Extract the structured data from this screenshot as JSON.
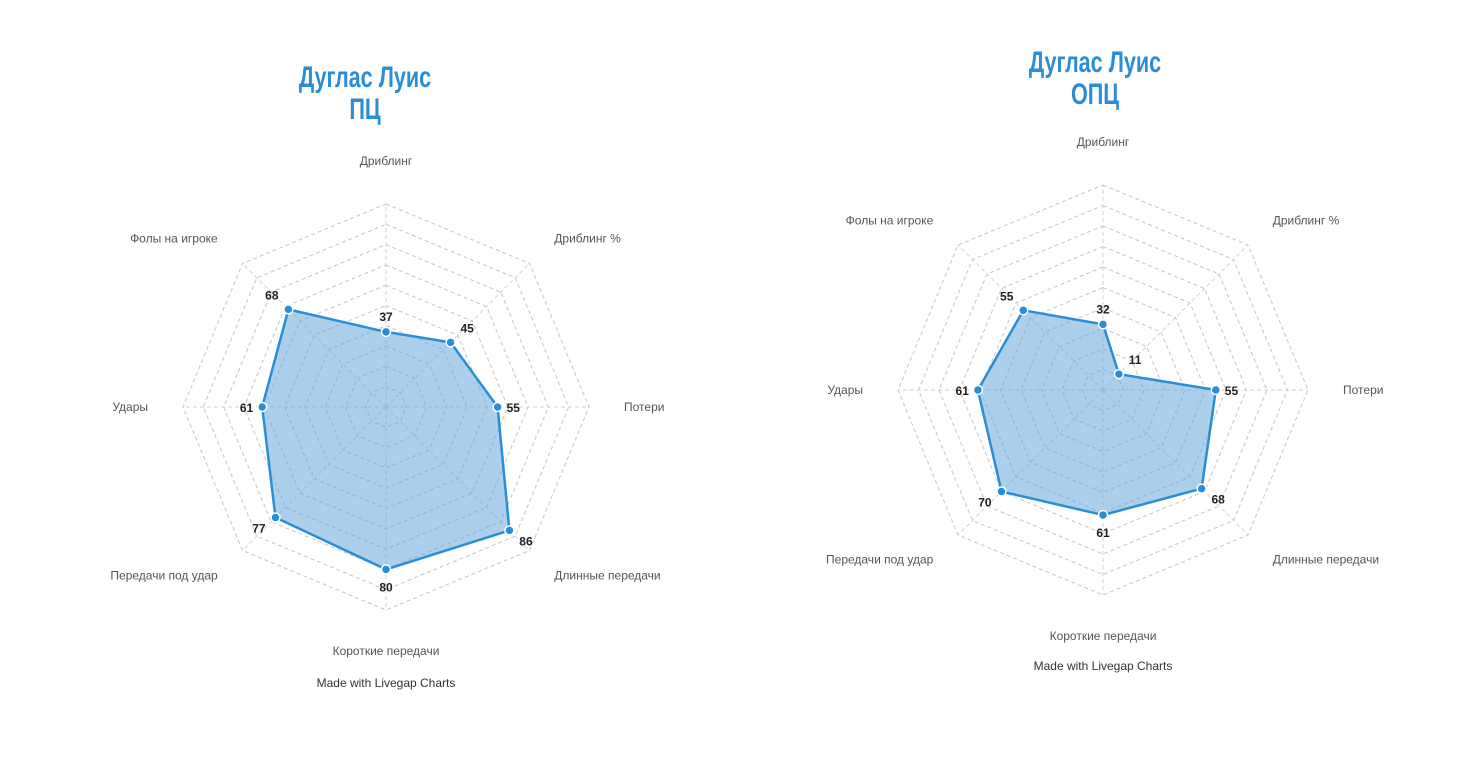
{
  "chart_data": [
    {
      "type": "radar",
      "title_lines": [
        "Дуглас Луис",
        "ПЦ"
      ],
      "categories": [
        "Дриблинг",
        "Дриблинг %",
        "Потери",
        "Длинные передачи",
        "Короткие передачи",
        "Передачи под удар",
        "Удары",
        "Фолы на игроке"
      ],
      "values": [
        37,
        45,
        55,
        86,
        80,
        77,
        61,
        68
      ],
      "rmax": 100,
      "grid_levels": 10,
      "credit": "Made with Livegap Charts",
      "colors": {
        "line": "#2a8ed6",
        "fill": "#68aadc",
        "title": "#2a8ed6"
      }
    },
    {
      "type": "radar",
      "title_lines": [
        "Дуглас Луис",
        "ОПЦ"
      ],
      "categories": [
        "Дриблинг",
        "Дриблинг %",
        "Потери",
        "Длинные передачи",
        "Короткие передачи",
        "Передачи под удар",
        "Удары",
        "Фолы на игроке"
      ],
      "values": [
        32,
        11,
        55,
        68,
        61,
        70,
        61,
        55
      ],
      "rmax": 100,
      "grid_levels": 10,
      "credit": "Made with Livegap Charts",
      "colors": {
        "line": "#2a8ed6",
        "fill": "#68aadc",
        "title": "#2a8ed6"
      }
    }
  ]
}
